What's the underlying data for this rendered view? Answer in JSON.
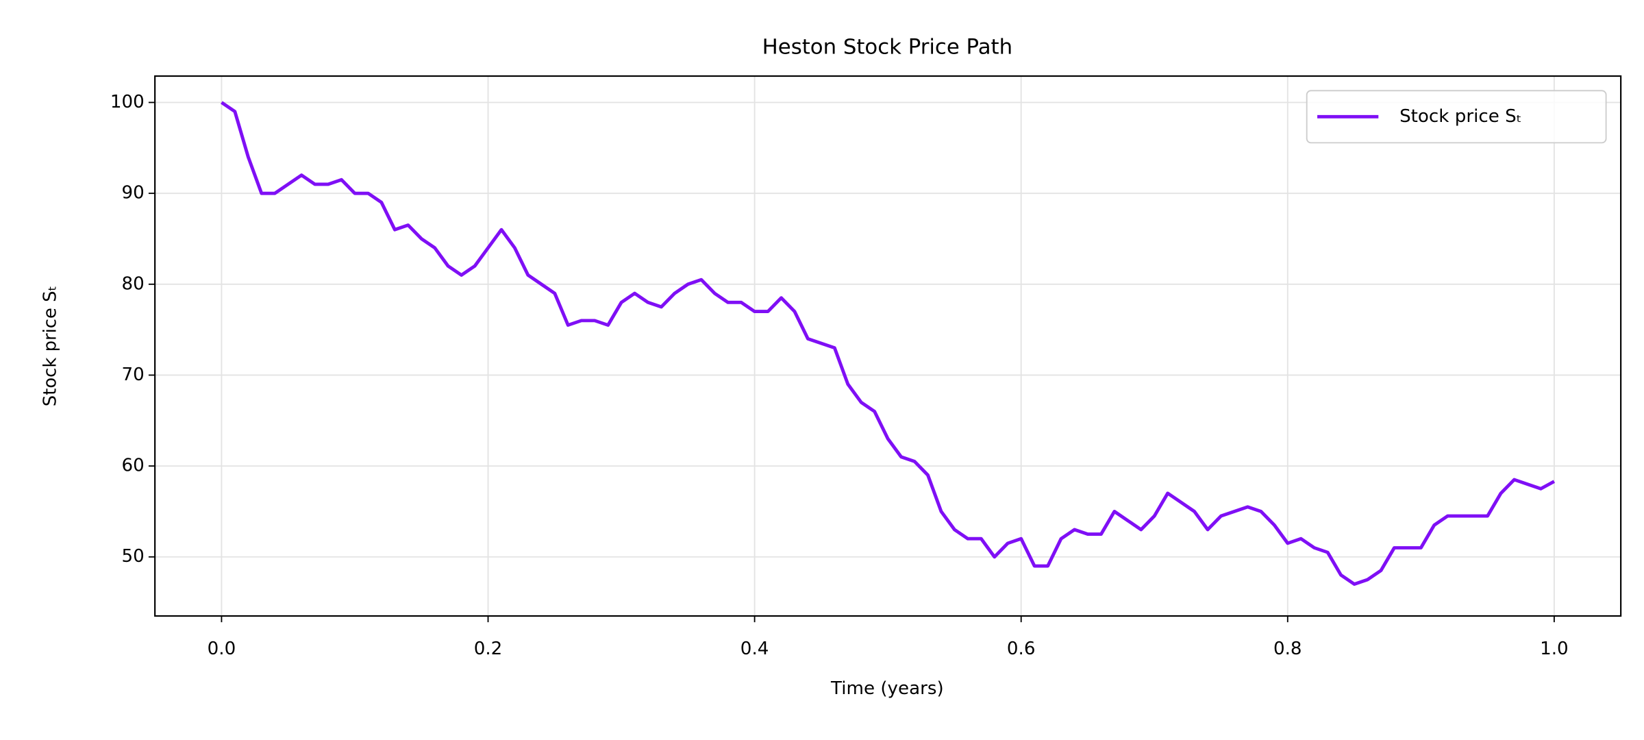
{
  "chart_data": {
    "type": "line",
    "title": "Heston Stock Price Path",
    "xlabel": "Time (years)",
    "ylabel": "Stock price Sₜ",
    "x": [
      0,
      0.01,
      0.02,
      0.03,
      0.04,
      0.05,
      0.06,
      0.07,
      0.08,
      0.09,
      0.1,
      0.11,
      0.12,
      0.13,
      0.14,
      0.15,
      0.16,
      0.17,
      0.18,
      0.19,
      0.2,
      0.21,
      0.22,
      0.23,
      0.24,
      0.25,
      0.26,
      0.27,
      0.28,
      0.29,
      0.3,
      0.31,
      0.32,
      0.33,
      0.34,
      0.35,
      0.36,
      0.37,
      0.38,
      0.39,
      0.4,
      0.41,
      0.42,
      0.43,
      0.44,
      0.45,
      0.46,
      0.47,
      0.48,
      0.49,
      0.5,
      0.51,
      0.52,
      0.53,
      0.54,
      0.55,
      0.56,
      0.57,
      0.58,
      0.59,
      0.6,
      0.61,
      0.62,
      0.63,
      0.64,
      0.65,
      0.66,
      0.67,
      0.68,
      0.69,
      0.7,
      0.71,
      0.72,
      0.73,
      0.74,
      0.75,
      0.76,
      0.77,
      0.78,
      0.79,
      0.8,
      0.81,
      0.82,
      0.83,
      0.84,
      0.85,
      0.86,
      0.87,
      0.88,
      0.89,
      0.9,
      0.91,
      0.92,
      0.93,
      0.94,
      0.95,
      0.96,
      0.97,
      0.98,
      0.99,
      1
    ],
    "series": [
      {
        "name": "Stock price Sₜ",
        "color": "#7f0ff5",
        "values": [
          100,
          99,
          94,
          90,
          90,
          91,
          92,
          91,
          91,
          91.5,
          90,
          90,
          89,
          86,
          86.5,
          85,
          84,
          82,
          81,
          82,
          84,
          86,
          84,
          81,
          80,
          79,
          75.5,
          76,
          76,
          75.5,
          78,
          79,
          78,
          77.5,
          79,
          80,
          80.5,
          79,
          78,
          78,
          77,
          77,
          78.5,
          77,
          74,
          73.5,
          73,
          69,
          67,
          66,
          63,
          61,
          60.5,
          59,
          55,
          53,
          52,
          52,
          50,
          51.5,
          52,
          49,
          49,
          52,
          53,
          52.5,
          52.5,
          55,
          54,
          53,
          54.5,
          57,
          56,
          55,
          53,
          54.5,
          55,
          55.5,
          55,
          53.5,
          51.5,
          52,
          51,
          50.5,
          48,
          47,
          47.5,
          48.5,
          51,
          51,
          51,
          53.5,
          54.5,
          54.5,
          54.5,
          54.5,
          57,
          58.5,
          58,
          57.5,
          58.3
        ]
      }
    ],
    "xlim": [
      -0.05,
      1.05
    ],
    "xticks": [
      {
        "value": 0,
        "label": "0.0"
      },
      0.2,
      0.4,
      0.6,
      0.8,
      {
        "value": 1,
        "label": "1.0"
      }
    ],
    "ylim": [
      43.5,
      102.9
    ],
    "yticks": [
      50,
      60,
      70,
      80,
      90,
      100
    ],
    "grid": true,
    "legend": "upper right"
  }
}
